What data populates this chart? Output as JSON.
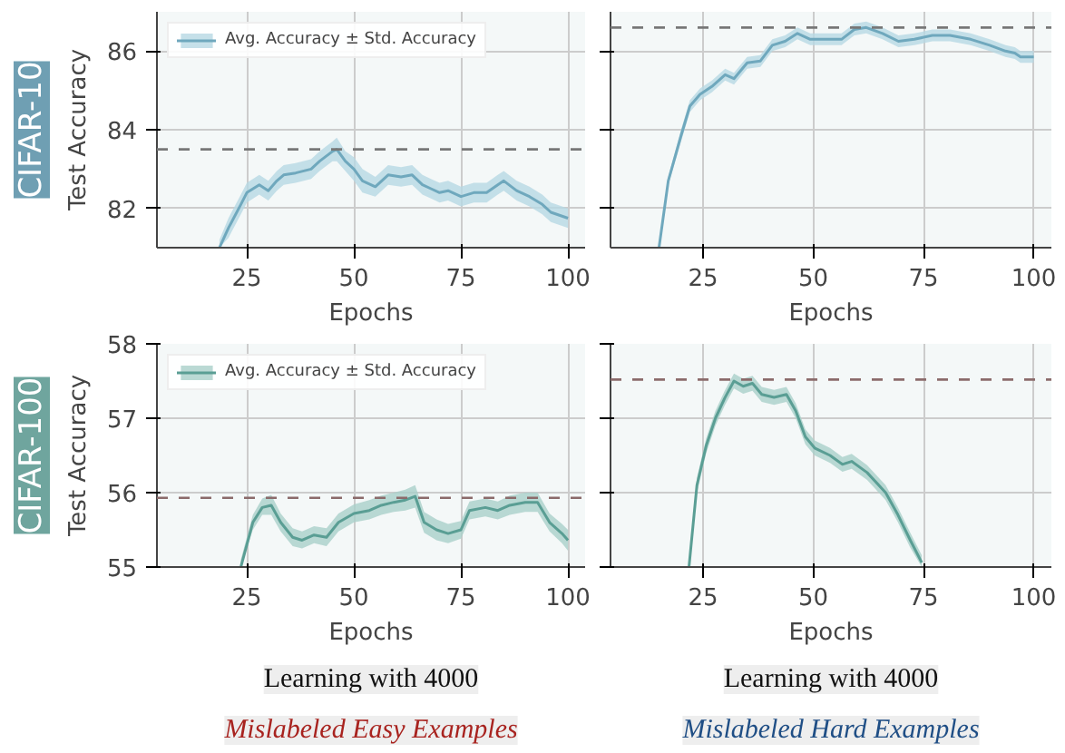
{
  "chart_data": [
    {
      "type": "line",
      "title": "CIFAR-10",
      "ylabel": "Test Accuracy",
      "xlabel": "Epochs",
      "xlim": [
        4,
        104
      ],
      "ylim": [
        81,
        87
      ],
      "xticks": [
        25,
        50,
        75,
        100
      ],
      "yticks": [
        82,
        84,
        86
      ],
      "grid": true,
      "legend": "top left",
      "ref_lines": [
        {
          "axis": "y",
          "value": 83.5,
          "color": "#777777",
          "line_style": "dashed"
        }
      ],
      "series": [
        {
          "name": "Avg. Accuracy ± Std. Accuracy",
          "color": "#6fa8bd",
          "x": [
            18.6,
            20.7,
            23.6,
            25,
            27.9,
            30,
            32,
            33.6,
            36.4,
            40,
            42,
            45,
            46,
            48,
            50,
            52,
            55,
            58,
            61,
            63.6,
            66,
            68,
            70,
            72,
            75,
            78,
            81,
            83.6,
            85,
            88,
            91,
            94,
            96,
            100
          ],
          "values": [
            81.0,
            81.5,
            82.1,
            82.4,
            82.6,
            82.45,
            82.7,
            82.85,
            82.9,
            83.0,
            83.2,
            83.45,
            83.5,
            83.2,
            83.0,
            82.7,
            82.55,
            82.85,
            82.8,
            82.85,
            82.6,
            82.5,
            82.4,
            82.45,
            82.3,
            82.4,
            82.4,
            82.6,
            82.7,
            82.45,
            82.3,
            82.1,
            81.9,
            81.75
          ],
          "lower": [
            81.0,
            81.25,
            81.85,
            82.15,
            82.35,
            82.2,
            82.45,
            82.6,
            82.65,
            82.75,
            82.95,
            83.2,
            83.2,
            82.95,
            82.7,
            82.4,
            82.3,
            82.6,
            82.55,
            82.6,
            82.35,
            82.25,
            82.15,
            82.2,
            82.05,
            82.15,
            82.15,
            82.35,
            82.45,
            82.2,
            82.05,
            81.85,
            81.65,
            81.5
          ],
          "upper": [
            81.2,
            81.75,
            82.35,
            82.65,
            82.85,
            82.7,
            82.95,
            83.1,
            83.15,
            83.25,
            83.45,
            83.7,
            83.8,
            83.45,
            83.3,
            83.0,
            82.8,
            83.1,
            83.05,
            83.1,
            82.85,
            82.75,
            82.65,
            82.7,
            82.55,
            82.65,
            82.65,
            82.85,
            82.95,
            82.7,
            82.55,
            82.35,
            82.15,
            82.0
          ]
        }
      ]
    },
    {
      "type": "line",
      "xlabel": "Epochs",
      "xlim": [
        4,
        104
      ],
      "ylim": [
        81,
        87
      ],
      "xticks": [
        25,
        50,
        75,
        100
      ],
      "yticks": [
        82,
        84,
        86
      ],
      "grid": true,
      "tick_labels": "x",
      "ref_lines": [
        {
          "axis": "y",
          "value": 86.6,
          "color": "#777777",
          "line_style": "dashed"
        }
      ],
      "series": [
        {
          "color": "#6fa8bd",
          "x": [
            15,
            17.1,
            20,
            22,
            24.3,
            27,
            30,
            32,
            35,
            38,
            40.7,
            43.6,
            46.4,
            49.3,
            52.9,
            56.4,
            59.3,
            62,
            65.7,
            69.3,
            72.9,
            77,
            81,
            85.7,
            90,
            93.6,
            95.7,
            97,
            100
          ],
          "values": [
            81.0,
            82.7,
            83.85,
            84.6,
            84.9,
            85.1,
            85.4,
            85.3,
            85.7,
            85.75,
            86.15,
            86.25,
            86.45,
            86.3,
            86.3,
            86.3,
            86.55,
            86.6,
            86.45,
            86.25,
            86.3,
            86.4,
            86.4,
            86.3,
            86.15,
            86.0,
            85.95,
            85.85,
            85.85
          ],
          "lower": [
            81.0,
            82.6,
            83.7,
            84.45,
            84.75,
            84.95,
            85.25,
            85.15,
            85.55,
            85.6,
            86.0,
            86.1,
            86.3,
            86.15,
            86.15,
            86.15,
            86.4,
            86.45,
            86.3,
            86.1,
            86.15,
            86.25,
            86.25,
            86.15,
            86.0,
            85.85,
            85.8,
            85.7,
            85.7
          ],
          "upper": [
            81.1,
            82.8,
            84.0,
            84.75,
            85.05,
            85.25,
            85.55,
            85.45,
            85.85,
            85.9,
            86.3,
            86.4,
            86.6,
            86.45,
            86.45,
            86.45,
            86.7,
            86.75,
            86.6,
            86.4,
            86.45,
            86.55,
            86.55,
            86.45,
            86.3,
            86.15,
            86.1,
            86.0,
            86.0
          ]
        }
      ]
    },
    {
      "type": "line",
      "title": "CIFAR-100",
      "ylabel": "Test Accuracy",
      "xlabel": "Epochs",
      "xlim": [
        4,
        104
      ],
      "ylim": [
        55,
        58
      ],
      "xticks": [
        25,
        50,
        75,
        100
      ],
      "yticks": [
        55,
        56,
        57,
        58
      ],
      "grid": true,
      "legend": "top left",
      "annotations": [
        "Learning with 4000",
        "Mislabeled Easy Examples"
      ],
      "ref_lines": [
        {
          "axis": "y",
          "value": 55.93,
          "color": "#8b6b6b",
          "line_style": "dashed"
        }
      ],
      "series": [
        {
          "name": "Avg. Accuracy ± Std. Accuracy",
          "color": "#5a9e94",
          "x": [
            23.6,
            26.4,
            28.6,
            30.7,
            32.9,
            35.7,
            37.9,
            40.7,
            43.6,
            46.4,
            50,
            53.6,
            56.4,
            59.3,
            62,
            64.3,
            66.4,
            69.3,
            72,
            75,
            77,
            80.7,
            83.6,
            86.4,
            90,
            92.9,
            95.7,
            98.6,
            100
          ],
          "values": [
            55.0,
            55.6,
            55.8,
            55.83,
            55.6,
            55.4,
            55.36,
            55.43,
            55.4,
            55.6,
            55.72,
            55.76,
            55.83,
            55.87,
            55.9,
            55.95,
            55.6,
            55.5,
            55.45,
            55.5,
            55.76,
            55.8,
            55.76,
            55.83,
            55.87,
            55.87,
            55.6,
            55.45,
            55.36
          ],
          "lower": [
            55.0,
            55.5,
            55.7,
            55.7,
            55.48,
            55.28,
            55.25,
            55.32,
            55.28,
            55.48,
            55.6,
            55.64,
            55.7,
            55.74,
            55.76,
            55.8,
            55.46,
            55.36,
            55.32,
            55.38,
            55.64,
            55.68,
            55.64,
            55.7,
            55.74,
            55.74,
            55.48,
            55.32,
            55.22
          ],
          "upper": [
            55.1,
            55.7,
            55.92,
            55.97,
            55.72,
            55.52,
            55.48,
            55.55,
            55.52,
            55.72,
            55.84,
            55.9,
            55.96,
            56.0,
            56.04,
            56.1,
            55.74,
            55.64,
            55.58,
            55.62,
            55.88,
            55.92,
            55.88,
            55.96,
            56.0,
            56.0,
            55.72,
            55.58,
            55.5
          ]
        }
      ]
    },
    {
      "type": "line",
      "xlabel": "Epochs",
      "xlim": [
        4,
        104
      ],
      "ylim": [
        55,
        58
      ],
      "xticks": [
        25,
        50,
        75,
        100
      ],
      "yticks": [
        55,
        56,
        57,
        58
      ],
      "grid": true,
      "tick_labels": "x",
      "annotations": [
        "Learning with 4000",
        "Mislabeled Hard Examples"
      ],
      "ref_lines": [
        {
          "axis": "y",
          "value": 57.52,
          "color": "#8b6b6b",
          "line_style": "dashed"
        }
      ],
      "series": [
        {
          "color": "#5a9e94",
          "x": [
            21.8,
            23.6,
            25.7,
            27.8,
            29.9,
            32,
            34.1,
            36.2,
            38.3,
            41.1,
            43.9,
            46,
            48.2,
            50.3,
            53.8,
            56.6,
            58.7,
            62.2,
            66.4,
            69.2,
            72,
            74.6
          ],
          "values": [
            55.0,
            56.1,
            56.63,
            57.0,
            57.27,
            57.5,
            57.43,
            57.47,
            57.32,
            57.28,
            57.32,
            57.1,
            56.75,
            56.6,
            56.5,
            56.38,
            56.42,
            56.27,
            56.0,
            55.7,
            55.36,
            55.06
          ],
          "lower": [
            55.0,
            56.0,
            56.53,
            56.9,
            57.17,
            57.4,
            57.33,
            57.37,
            57.22,
            57.18,
            57.22,
            57.0,
            56.65,
            56.5,
            56.4,
            56.28,
            56.32,
            56.17,
            55.9,
            55.6,
            55.26,
            55.0
          ],
          "upper": [
            55.05,
            56.2,
            56.73,
            57.1,
            57.37,
            57.6,
            57.53,
            57.57,
            57.42,
            57.38,
            57.42,
            57.2,
            56.85,
            56.7,
            56.6,
            56.48,
            56.52,
            56.37,
            56.1,
            55.8,
            55.46,
            55.16
          ]
        }
      ]
    }
  ]
}
